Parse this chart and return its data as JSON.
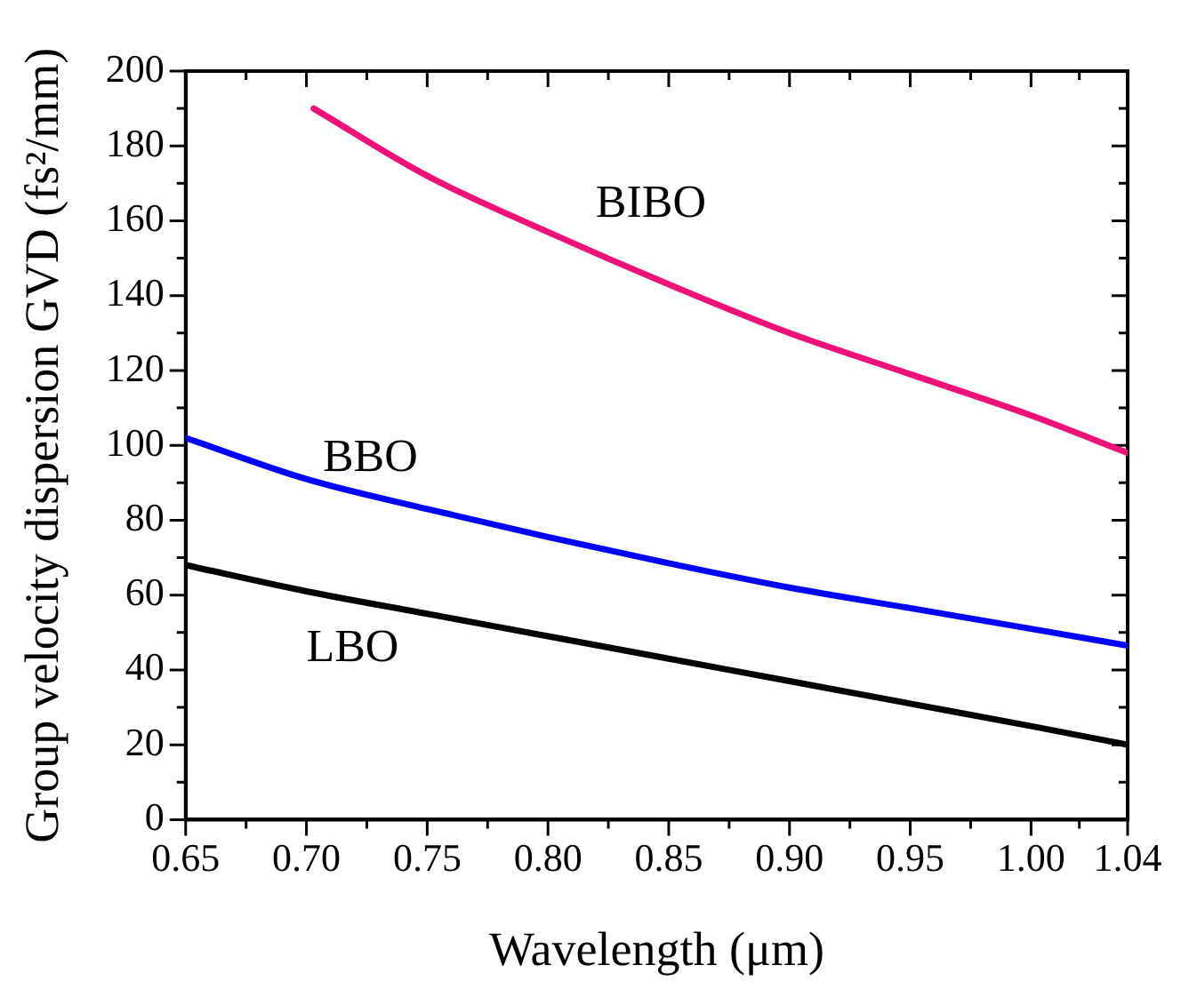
{
  "chart_data": {
    "type": "line",
    "xlabel": "Wavelength (μm)",
    "ylabel": "Group velocity dispersion GVD (fs²/mm)",
    "xlim": [
      0.65,
      1.04
    ],
    "xticks": [
      0.65,
      {
        "value": 0.7,
        "label": "0.70"
      },
      0.75,
      {
        "value": 0.8,
        "label": "0.80"
      },
      0.85,
      {
        "value": 0.9,
        "label": "0.90"
      },
      0.95,
      {
        "value": 1,
        "label": "1.00"
      },
      1.04
    ],
    "ylim": [
      0,
      200
    ],
    "yticks": [
      0,
      20,
      40,
      60,
      80,
      100,
      120,
      140,
      160,
      180,
      200
    ],
    "marker": "none",
    "line_style": "solid",
    "legend": false,
    "series": [
      {
        "name": "BIBO",
        "color": "#f0107a",
        "x": [
          0.703,
          0.75,
          0.8,
          0.85,
          0.9,
          0.95,
          1.0,
          1.04
        ],
        "values": [
          190,
          172,
          157,
          143,
          130,
          119,
          108,
          98
        ]
      },
      {
        "name": "BBO",
        "color": "#0000ff",
        "x": [
          0.65,
          0.7,
          0.75,
          0.8,
          0.85,
          0.9,
          0.95,
          1.0,
          1.04
        ],
        "values": [
          102,
          91,
          83,
          75.5,
          68.5,
          62,
          56.5,
          51,
          46.5
        ]
      },
      {
        "name": "LBO",
        "color": "#000000",
        "x": [
          0.65,
          0.7,
          0.75,
          0.8,
          0.85,
          0.9,
          0.95,
          1.0,
          1.04
        ],
        "values": [
          68,
          61,
          55,
          49,
          43,
          37,
          31,
          25,
          20
        ]
      }
    ]
  }
}
